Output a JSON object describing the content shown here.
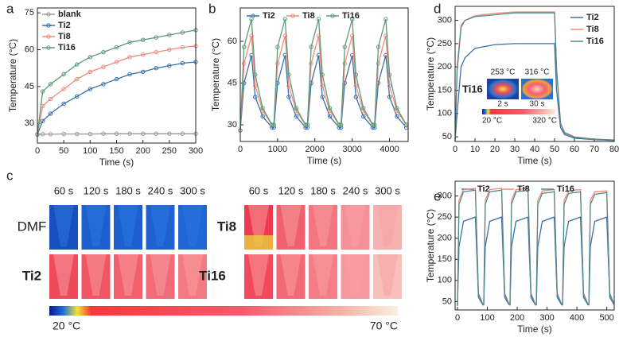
{
  "chart_data": [
    {
      "type": "line",
      "panel": "a",
      "xlabel": "Time (s)",
      "ylabel": "Temperature (°C)",
      "xlim": [
        0,
        300
      ],
      "ylim": [
        22,
        77
      ],
      "xticks": [
        0,
        50,
        100,
        150,
        200,
        250,
        300
      ],
      "yticks": [
        30,
        45,
        60,
        75
      ],
      "legend": "upper left",
      "markers": true,
      "x": [
        0,
        10,
        25,
        50,
        75,
        100,
        125,
        150,
        175,
        200,
        225,
        250,
        275,
        300
      ],
      "series": [
        {
          "name": "blank",
          "color": "#9a9a9a",
          "values": [
            25.5,
            25.6,
            25.6,
            25.7,
            25.7,
            25.7,
            25.8,
            25.8,
            25.8,
            25.8,
            25.8,
            25.8,
            25.8,
            25.8
          ]
        },
        {
          "name": "Ti2",
          "color": "#3b6fa8",
          "values": [
            25.5,
            31,
            34,
            38,
            41,
            44,
            46,
            48,
            50,
            51,
            52.5,
            53.5,
            54.5,
            55
          ]
        },
        {
          "name": "Ti8",
          "color": "#f08c7c",
          "values": [
            25.5,
            37,
            40,
            44,
            48,
            51,
            53,
            55,
            57,
            58,
            59,
            60,
            61,
            61.5
          ]
        },
        {
          "name": "Ti16",
          "color": "#5e9a78",
          "values": [
            25.5,
            43,
            46,
            50,
            54,
            57,
            59,
            61,
            63,
            64,
            65,
            66,
            67,
            68
          ]
        }
      ]
    },
    {
      "type": "line",
      "panel": "b",
      "xlabel": "Time (s)",
      "ylabel": "Temperature (°C)",
      "xlim": [
        0,
        4500
      ],
      "ylim": [
        24,
        72
      ],
      "xticks": [
        0,
        1000,
        2000,
        3000,
        4000
      ],
      "yticks": [
        30,
        45,
        60
      ],
      "legend": "top",
      "markers": true,
      "x": [
        0,
        100,
        300,
        400,
        600,
        850,
        900,
        1000,
        1200,
        1300,
        1500,
        1750,
        1800,
        1900,
        2100,
        2200,
        2400,
        2650,
        2700,
        2800,
        3000,
        3100,
        3300,
        3550,
        3600,
        3700,
        3900,
        4000,
        4200,
        4450
      ],
      "series": [
        {
          "name": "Ti2",
          "color": "#3b6fa8",
          "values": [
            28,
            45,
            55,
            40,
            33,
            29,
            29,
            45,
            55,
            40,
            33,
            29,
            29,
            45,
            55,
            40,
            33,
            29,
            29,
            45,
            55,
            40,
            33,
            29,
            29,
            45,
            55,
            40,
            33,
            29
          ]
        },
        {
          "name": "Ti8",
          "color": "#f08c7c",
          "values": [
            28,
            52,
            62,
            44,
            35,
            30,
            30,
            52,
            62,
            44,
            35,
            30,
            30,
            52,
            62,
            44,
            35,
            30,
            30,
            52,
            62,
            44,
            35,
            30,
            30,
            52,
            62,
            44,
            35,
            30
          ]
        },
        {
          "name": "Ti16",
          "color": "#5e9a78",
          "values": [
            28,
            58,
            68,
            48,
            36,
            30,
            30,
            58,
            68,
            48,
            36,
            30,
            30,
            58,
            68,
            48,
            36,
            30,
            30,
            58,
            68,
            48,
            36,
            30,
            30,
            58,
            68,
            48,
            36,
            30
          ]
        }
      ]
    },
    {
      "type": "line",
      "panel": "d",
      "xlabel": "Time (s)",
      "ylabel": "Temperature (°C)",
      "xlim": [
        0,
        80
      ],
      "ylim": [
        40,
        330
      ],
      "xticks": [
        0,
        10,
        20,
        30,
        40,
        50,
        60,
        70,
        80
      ],
      "yticks": [
        50,
        100,
        150,
        200,
        250,
        300
      ],
      "legend": "upper right",
      "markers": false,
      "x": [
        0,
        1,
        3,
        5,
        10,
        20,
        30,
        40,
        50,
        51,
        53,
        55,
        60,
        70,
        80
      ],
      "series": [
        {
          "name": "Ti2",
          "color": "#3b6fa8",
          "values": [
            42,
            100,
            200,
            220,
            240,
            248,
            250,
            250,
            250,
            150,
            70,
            55,
            47,
            44,
            42
          ]
        },
        {
          "name": "Ti8",
          "color": "#f08c7c",
          "values": [
            42,
            200,
            290,
            300,
            310,
            315,
            318,
            318,
            318,
            200,
            80,
            60,
            50,
            45,
            43
          ]
        },
        {
          "name": "Ti16",
          "color": "#4f8c8a",
          "values": [
            42,
            190,
            285,
            300,
            308,
            312,
            316,
            316,
            316,
            195,
            78,
            58,
            49,
            45,
            43
          ]
        }
      ],
      "inset": {
        "sample": "Ti16",
        "temps": [
          "253 °C",
          "316 °C"
        ],
        "times": [
          "2 s",
          "30 s"
        ],
        "scale_min": "20 °C",
        "scale_max": "320 °C"
      }
    },
    {
      "type": "line",
      "panel": "e",
      "xlabel": "Time (s)",
      "ylabel": "Temperature (°C)",
      "xlim": [
        -8,
        525
      ],
      "ylim": [
        30,
        335
      ],
      "xticks": [
        0,
        100,
        200,
        300,
        400,
        500
      ],
      "yticks": [
        50,
        100,
        150,
        200,
        250,
        300
      ],
      "legend": "top",
      "markers": false,
      "x": [
        0,
        5,
        20,
        60,
        70,
        85,
        88,
        93,
        108,
        148,
        158,
        173,
        176,
        181,
        196,
        236,
        246,
        261,
        264,
        269,
        284,
        324,
        334,
        349,
        352,
        357,
        372,
        412,
        422,
        437,
        440,
        445,
        460,
        500,
        510,
        525
      ],
      "series": [
        {
          "name": "Ti2",
          "color": "#3b6fa8",
          "values": [
            40,
            180,
            240,
            250,
            60,
            42,
            42,
            180,
            240,
            250,
            60,
            42,
            42,
            180,
            240,
            250,
            60,
            42,
            42,
            180,
            240,
            250,
            60,
            42,
            42,
            180,
            240,
            250,
            60,
            42,
            42,
            180,
            240,
            250,
            60,
            42
          ]
        },
        {
          "name": "Ti8",
          "color": "#f08c7c",
          "values": [
            40,
            290,
            315,
            318,
            70,
            43,
            43,
            290,
            315,
            318,
            70,
            43,
            43,
            290,
            315,
            318,
            70,
            43,
            43,
            290,
            312,
            315,
            70,
            43,
            43,
            290,
            312,
            315,
            70,
            43,
            43,
            290,
            310,
            312,
            70,
            43
          ]
        },
        {
          "name": "Ti16",
          "color": "#4f8c8a",
          "values": [
            40,
            280,
            310,
            314,
            68,
            43,
            43,
            280,
            310,
            314,
            68,
            43,
            43,
            280,
            310,
            314,
            68,
            43,
            43,
            280,
            306,
            310,
            68,
            43,
            43,
            280,
            306,
            310,
            68,
            43,
            43,
            280,
            304,
            308,
            68,
            43
          ]
        }
      ]
    }
  ],
  "thermal_images": {
    "panel": "c",
    "times": [
      "60 s",
      "120 s",
      "180 s",
      "240 s",
      "300 s"
    ],
    "samples": [
      "DMF",
      "Ti2",
      "Ti8",
      "Ti16"
    ],
    "scale_min": "20 °C",
    "scale_max": "70 °C"
  }
}
